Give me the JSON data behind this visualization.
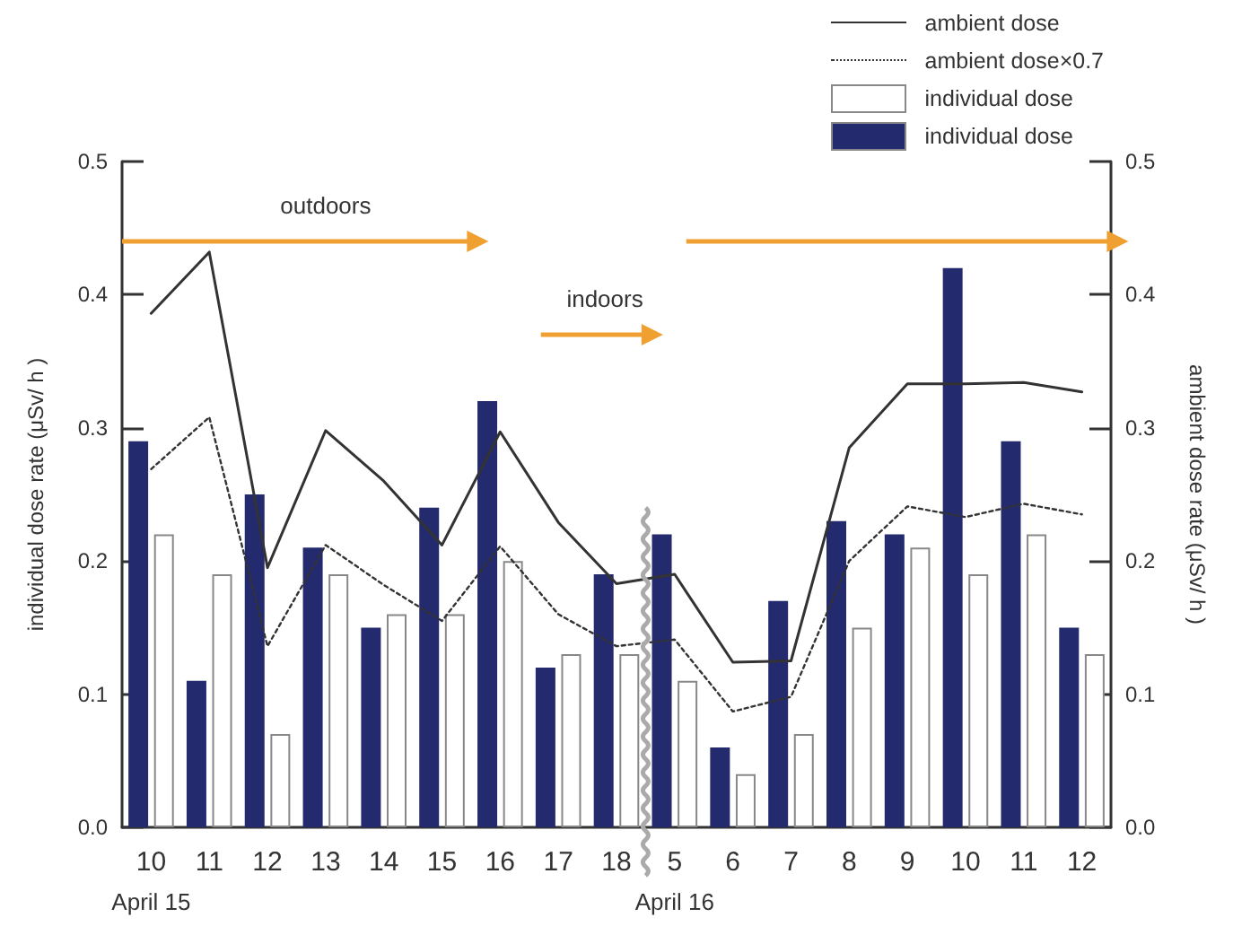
{
  "chart_data": {
    "type": "bar",
    "ylabel": "individual dose rate (μSv/ h )",
    "y2label": "ambient dose rate (μSv/ h )",
    "categories": [
      "10",
      "11",
      "12",
      "13",
      "14",
      "15",
      "16",
      "17",
      "18",
      "5",
      "6",
      "7",
      "8",
      "9",
      "10",
      "11",
      "12"
    ],
    "series": [
      {
        "name": "ambient dose",
        "type": "line",
        "line_style": "solid",
        "color": "#333333",
        "values": [
          0.386,
          0.432,
          0.195,
          0.298,
          0.26,
          0.212,
          0.297,
          0.229,
          0.183,
          0.19,
          0.124,
          0.125,
          0.285,
          0.333,
          0.333,
          0.334,
          0.327
        ]
      },
      {
        "name": "ambient dose×0.7",
        "type": "line",
        "line_style": "dotted",
        "color": "#333333",
        "values": [
          0.269,
          0.308,
          0.136,
          0.212,
          0.182,
          0.155,
          0.211,
          0.16,
          0.136,
          0.141,
          0.087,
          0.098,
          0.2,
          0.241,
          0.233,
          0.243,
          0.235
        ]
      },
      {
        "name": "individual dose",
        "color": "#ffffff",
        "values": [
          0.22,
          0.19,
          0.07,
          0.19,
          0.16,
          0.16,
          0.2,
          0.13,
          0.13,
          0.11,
          0.04,
          0.07,
          0.15,
          0.21,
          0.19,
          0.22,
          0.13
        ]
      },
      {
        "name": "individual dose",
        "color": "#232a6e",
        "values": [
          0.29,
          0.11,
          0.25,
          0.21,
          0.15,
          0.24,
          0.32,
          0.12,
          0.19,
          0.22,
          0.06,
          0.17,
          0.23,
          0.22,
          0.42,
          0.29,
          0.15
        ]
      }
    ],
    "ylim": [
      0,
      0.5
    ],
    "yticks": [
      {
        "value": 0,
        "label": "0.0"
      },
      {
        "value": 0.1,
        "label": "0.1"
      },
      {
        "value": 0.2,
        "label": "0.2"
      },
      {
        "value": 0.3,
        "label": "0.3"
      },
      {
        "value": 0.4,
        "label": "0.4"
      },
      {
        "value": 0.5,
        "label": "0.5"
      }
    ],
    "y2lim": [
      0,
      0.5
    ],
    "y2ticks": [
      {
        "value": 0,
        "label": "0.0"
      },
      {
        "value": 0.1,
        "label": "0.1"
      },
      {
        "value": 0.2,
        "label": "0.2"
      },
      {
        "value": 0.3,
        "label": "0.3"
      },
      {
        "value": 0.4,
        "label": "0.4"
      },
      {
        "value": 0.5,
        "label": "0.5"
      }
    ],
    "annotations": [
      "outdoors",
      "indoors",
      "April 15",
      "April 16"
    ],
    "legend": "top right",
    "marker": "none"
  }
}
